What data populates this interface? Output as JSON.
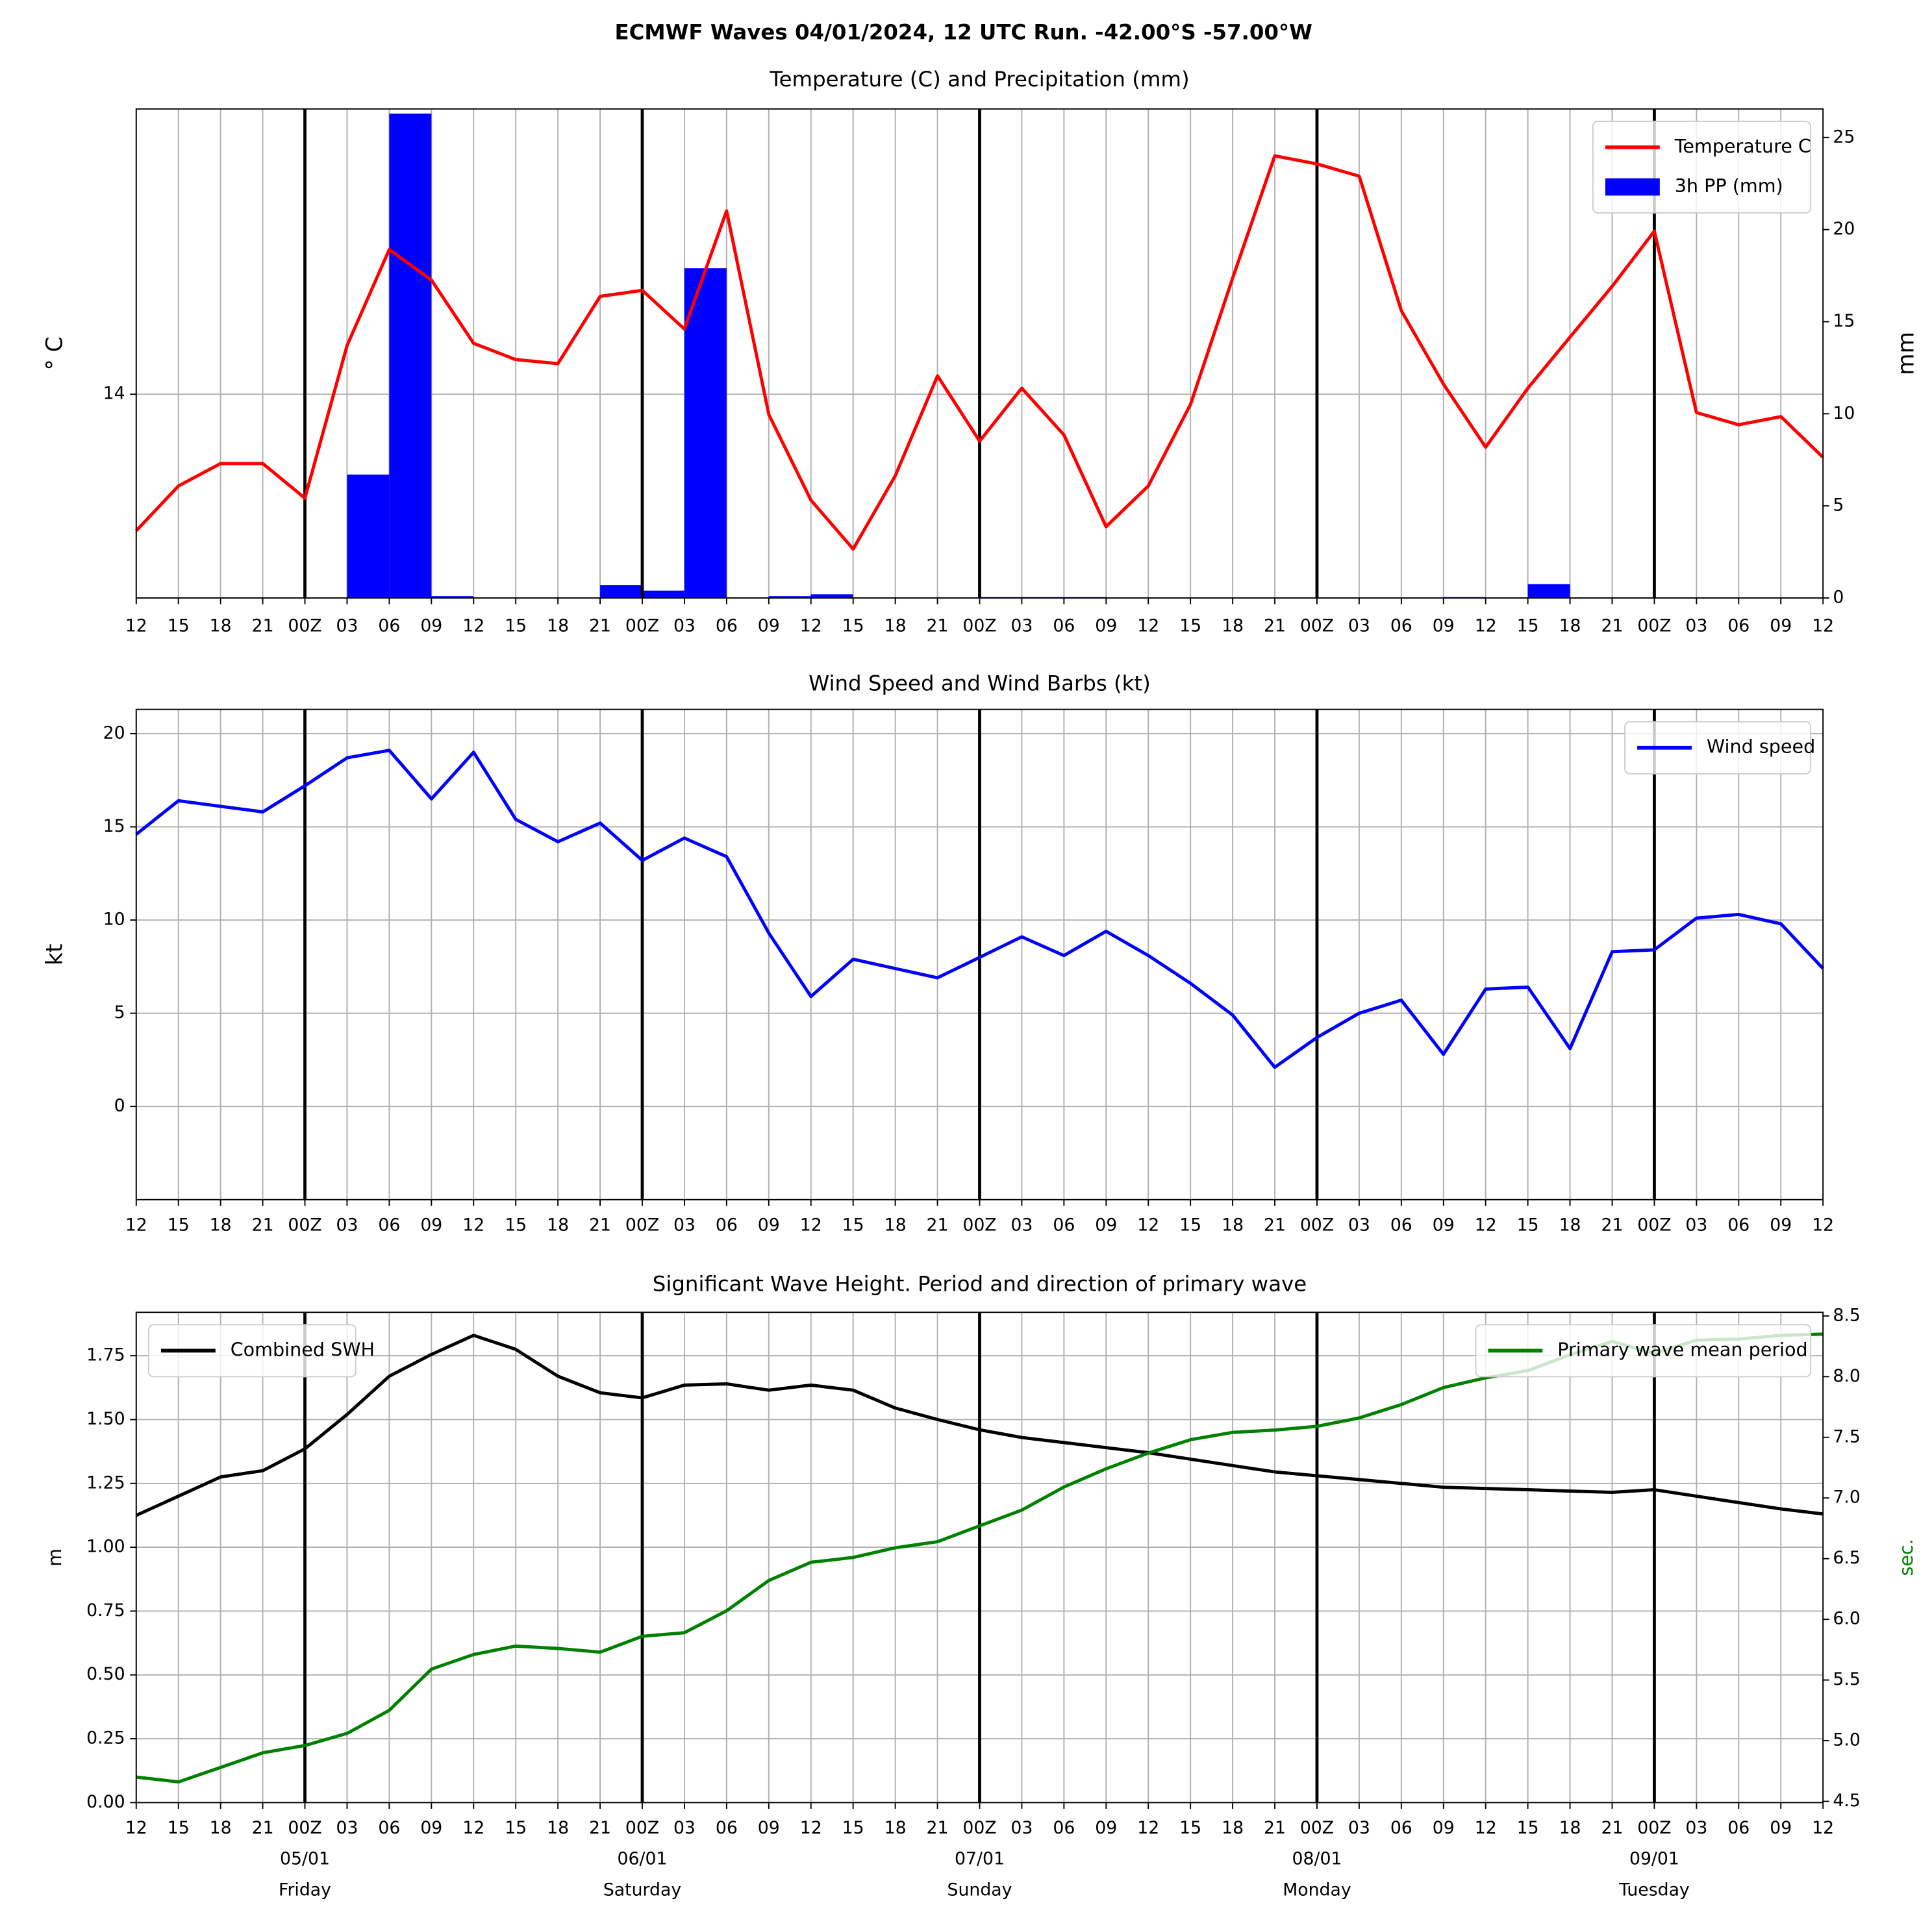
{
  "title": "ECMWF Waves 04/01/2024, 12 UTC Run. -42.00°S -57.00°W",
  "chart_data": [
    {
      "type": "combo",
      "title": "Temperature (C) and Precipitation (mm)",
      "categories": [
        "12",
        "15",
        "18",
        "21",
        "00Z",
        "03",
        "06",
        "09",
        "12",
        "15",
        "18",
        "21",
        "00Z",
        "03",
        "06",
        "09",
        "12",
        "15",
        "18",
        "21",
        "00Z",
        "03",
        "06",
        "09",
        "12",
        "15",
        "18",
        "21",
        "00Z",
        "03",
        "06",
        "09",
        "12",
        "15",
        "18",
        "21",
        "00Z",
        "03",
        "06",
        "09",
        "12"
      ],
      "ylabel": "° C",
      "y2label": "mm",
      "ylim": [
        13,
        15.4
      ],
      "yticks": [
        14
      ],
      "y2lim": [
        0,
        26.55
      ],
      "y2ticks": [
        0,
        5,
        10,
        15,
        20,
        25
      ],
      "grid": true,
      "series": [
        {
          "name": "Temperature C",
          "color": "#ff0000",
          "kind": "line",
          "axis": "y",
          "legend": "upper right",
          "values": [
            13.33,
            13.55,
            13.66,
            13.66,
            13.49,
            14.24,
            14.71,
            14.56,
            14.25,
            14.17,
            14.15,
            14.48,
            14.51,
            14.32,
            14.9,
            13.9,
            13.48,
            13.24,
            13.6,
            14.09,
            13.77,
            14.03,
            13.8,
            13.35,
            13.55,
            13.95,
            14.57,
            15.17,
            15.13,
            15.07,
            14.41,
            14.05,
            13.74,
            14.03,
            14.28,
            14.53,
            14.8,
            13.91,
            13.85,
            13.89,
            13.69
          ]
        },
        {
          "name": "3h PP (mm)",
          "color": "#0000ff",
          "kind": "bar",
          "axis": "y2",
          "legend": "upper right",
          "values": [
            0,
            0,
            0,
            0,
            0,
            6.7,
            26.3,
            0.1,
            0,
            0,
            0,
            0.7,
            0.4,
            17.9,
            0,
            0.1,
            0.2,
            0,
            0,
            0,
            0.05,
            0.05,
            0.05,
            0,
            0,
            0,
            0,
            0,
            0,
            0,
            0,
            0.05,
            0,
            0.75,
            0,
            0,
            0,
            0,
            0,
            0,
            0
          ]
        }
      ]
    },
    {
      "type": "line",
      "title": "Wind Speed and Wind Barbs (kt)",
      "categories": [
        "12",
        "15",
        "18",
        "21",
        "00Z",
        "03",
        "06",
        "09",
        "12",
        "15",
        "18",
        "21",
        "00Z",
        "03",
        "06",
        "09",
        "12",
        "15",
        "18",
        "21",
        "00Z",
        "03",
        "06",
        "09",
        "12",
        "15",
        "18",
        "21",
        "00Z",
        "03",
        "06",
        "09",
        "12",
        "15",
        "18",
        "21",
        "00Z",
        "03",
        "06",
        "09",
        "12"
      ],
      "ylabel": "kt",
      "ylim": [
        -5,
        21.3
      ],
      "yticks": [
        0,
        5,
        10,
        15,
        20
      ],
      "grid": true,
      "series": [
        {
          "name": "Wind speed",
          "color": "#0000ff",
          "kind": "line",
          "axis": "y",
          "legend": "upper right",
          "values": [
            14.6,
            16.4,
            16.1,
            15.8,
            17.2,
            18.7,
            19.1,
            16.5,
            19.0,
            15.4,
            14.2,
            15.2,
            13.2,
            14.4,
            13.4,
            9.3,
            5.9,
            7.9,
            7.4,
            6.9,
            8.0,
            9.1,
            8.1,
            9.4,
            8.1,
            6.6,
            4.9,
            2.1,
            3.7,
            5.0,
            5.7,
            2.8,
            6.3,
            6.4,
            3.1,
            8.3,
            8.4,
            10.1,
            10.3,
            9.8,
            7.4
          ]
        }
      ]
    },
    {
      "type": "line",
      "title": "Significant Wave Height. Period and direction of primary wave",
      "categories": [
        "12",
        "15",
        "18",
        "21",
        "00Z",
        "03",
        "06",
        "09",
        "12",
        "15",
        "18",
        "21",
        "00Z",
        "03",
        "06",
        "09",
        "12",
        "15",
        "18",
        "21",
        "00Z",
        "03",
        "06",
        "09",
        "12",
        "15",
        "18",
        "21",
        "00Z",
        "03",
        "06",
        "09",
        "12",
        "15",
        "18",
        "21",
        "00Z",
        "03",
        "06",
        "09",
        "12"
      ],
      "day_labels": [
        {
          "date": "05/01",
          "day": "Friday"
        },
        {
          "date": "06/01",
          "day": "Saturday"
        },
        {
          "date": "07/01",
          "day": "Sunday"
        },
        {
          "date": "08/01",
          "day": "Monday"
        },
        {
          "date": "09/01",
          "day": "Tuesday"
        }
      ],
      "ylabel": "m",
      "y2label": "sec.",
      "y2label_color": "#008000",
      "ylim": [
        0,
        1.92
      ],
      "yticks": [
        {
          "value": 0,
          "label": "0.00"
        },
        {
          "value": 0.25,
          "label": "0.25"
        },
        {
          "value": 0.5,
          "label": "0.50"
        },
        {
          "value": 0.75,
          "label": "0.75"
        },
        {
          "value": 1,
          "label": "1.00"
        },
        {
          "value": 1.25,
          "label": "1.25"
        },
        {
          "value": 1.5,
          "label": "1.50"
        },
        {
          "value": 1.75,
          "label": "1.75"
        }
      ],
      "y2lim": [
        4.49,
        8.53
      ],
      "y2ticks": [
        4.5,
        {
          "value": 5,
          "label": "5.0"
        },
        5.5,
        {
          "value": 6,
          "label": "6.0"
        },
        6.5,
        {
          "value": 7,
          "label": "7.0"
        },
        7.5,
        {
          "value": 8,
          "label": "8.0"
        },
        8.5
      ],
      "grid": true,
      "series": [
        {
          "name": "Combined SWH",
          "color": "#000000",
          "kind": "line",
          "axis": "y",
          "legend": "upper left",
          "values": [
            1.125,
            1.2,
            1.275,
            1.3,
            1.385,
            1.52,
            1.67,
            1.755,
            1.83,
            1.775,
            1.67,
            1.605,
            1.585,
            1.635,
            1.64,
            1.615,
            1.635,
            1.615,
            1.545,
            1.5,
            1.46,
            1.43,
            1.41,
            1.39,
            1.37,
            1.345,
            1.32,
            1.295,
            1.28,
            1.265,
            1.25,
            1.235,
            1.23,
            1.225,
            1.22,
            1.215,
            1.225,
            1.2,
            1.175,
            1.15,
            1.13
          ]
        },
        {
          "name": "Primary wave mean period",
          "color": "#008000",
          "kind": "line",
          "axis": "y2",
          "legend": "upper right",
          "values": [
            4.7,
            4.66,
            4.78,
            4.9,
            4.96,
            5.06,
            5.25,
            5.59,
            5.71,
            5.78,
            5.76,
            5.73,
            5.86,
            5.89,
            6.07,
            6.32,
            6.47,
            6.51,
            6.59,
            6.64,
            6.77,
            6.9,
            7.09,
            7.24,
            7.37,
            7.48,
            7.54,
            7.56,
            7.59,
            7.66,
            7.77,
            7.91,
            7.99,
            8.05,
            8.18,
            8.29,
            8.19,
            8.3,
            8.31,
            8.34,
            8.35
          ]
        }
      ]
    }
  ]
}
